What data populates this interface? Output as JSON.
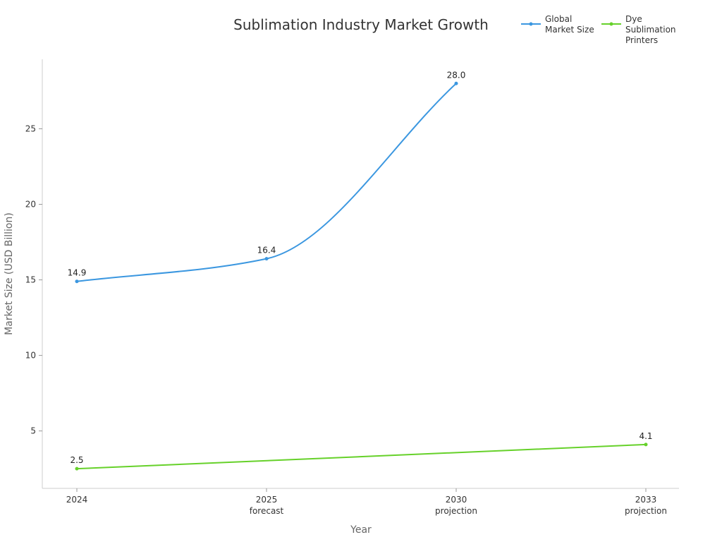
{
  "chart_data": {
    "type": "line",
    "title": "Sublimation Industry Market Growth",
    "xlabel": "Year",
    "ylabel": "Market Size (USD Billion)",
    "categories": [
      {
        "year": "2024",
        "note": ""
      },
      {
        "year": "2025",
        "note": "forecast"
      },
      {
        "year": "2030",
        "note": "projection"
      },
      {
        "year": "2033",
        "note": "projection"
      }
    ],
    "yticks": [
      5,
      10,
      15,
      20,
      25
    ],
    "ylim": [
      1.2,
      29.6
    ],
    "grid": false,
    "legend_position": "top-right",
    "series": [
      {
        "name": "Global Market Size",
        "legend_lines": [
          "Global",
          "Market Size"
        ],
        "color": "#3b97e0",
        "smooth": true,
        "values": [
          14.9,
          16.4,
          28.0,
          null
        ],
        "labels": [
          "14.9",
          "16.4",
          "28.0",
          ""
        ]
      },
      {
        "name": "Dye Sublimation Printers",
        "legend_lines": [
          "Dye",
          "Sublimation",
          "Printers"
        ],
        "color": "#66d12a",
        "smooth": false,
        "values": [
          2.5,
          null,
          null,
          4.1
        ],
        "labels": [
          "2.5",
          "",
          "",
          "4.1"
        ]
      }
    ]
  }
}
